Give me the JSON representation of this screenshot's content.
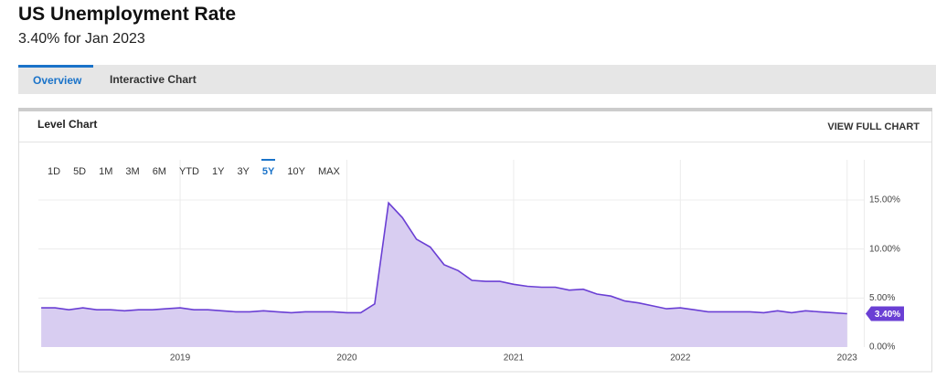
{
  "header": {
    "title": "US Unemployment Rate",
    "subtitle": "3.40% for Jan 2023"
  },
  "tabs": [
    "Overview",
    "Interactive Chart"
  ],
  "panel": {
    "title": "Level Chart",
    "link": "VIEW FULL CHART",
    "ranges": [
      "1D",
      "5D",
      "1M",
      "3M",
      "6M",
      "YTD",
      "1Y",
      "3Y",
      "5Y",
      "10Y",
      "MAX"
    ],
    "active_range": "5Y"
  },
  "chart_data": {
    "type": "area",
    "color": "#6a3fd4",
    "fill": "#d8cdf1",
    "x": [
      2018.167,
      2018.25,
      2018.333,
      2018.417,
      2018.5,
      2018.583,
      2018.667,
      2018.75,
      2018.833,
      2018.917,
      2019.0,
      2019.083,
      2019.167,
      2019.25,
      2019.333,
      2019.417,
      2019.5,
      2019.583,
      2019.667,
      2019.75,
      2019.833,
      2019.917,
      2020.0,
      2020.083,
      2020.167,
      2020.25,
      2020.333,
      2020.417,
      2020.5,
      2020.583,
      2020.667,
      2020.75,
      2020.833,
      2020.917,
      2021.0,
      2021.083,
      2021.167,
      2021.25,
      2021.333,
      2021.417,
      2021.5,
      2021.583,
      2021.667,
      2021.75,
      2021.833,
      2021.917,
      2022.0,
      2022.083,
      2022.167,
      2022.25,
      2022.333,
      2022.417,
      2022.5,
      2022.583,
      2022.667,
      2022.75,
      2022.833,
      2022.917,
      2023.0
    ],
    "values": [
      4.0,
      4.0,
      3.8,
      4.0,
      3.8,
      3.8,
      3.7,
      3.8,
      3.8,
      3.9,
      4.0,
      3.8,
      3.8,
      3.7,
      3.6,
      3.6,
      3.7,
      3.6,
      3.5,
      3.6,
      3.6,
      3.6,
      3.5,
      3.5,
      4.4,
      14.7,
      13.2,
      11.0,
      10.2,
      8.4,
      7.8,
      6.8,
      6.7,
      6.7,
      6.4,
      6.2,
      6.1,
      6.1,
      5.8,
      5.9,
      5.4,
      5.2,
      4.7,
      4.5,
      4.2,
      3.9,
      4.0,
      3.8,
      3.6,
      3.6,
      3.6,
      3.6,
      3.5,
      3.7,
      3.5,
      3.7,
      3.6,
      3.5,
      3.4
    ],
    "current_value": {
      "value": 3.4,
      "label": "3.40%"
    },
    "xlim": [
      2018.15,
      2023.1
    ],
    "xticks": [
      2019,
      2020,
      2021,
      2022,
      2023
    ],
    "ylim": [
      0,
      19.1
    ],
    "yticks": [
      {
        "value": 0,
        "label": "0.00%"
      },
      {
        "value": 5,
        "label": "5.00%"
      },
      {
        "value": 10,
        "label": "10.00%"
      },
      {
        "value": 15,
        "label": "15.00%"
      }
    ],
    "grid": true
  }
}
